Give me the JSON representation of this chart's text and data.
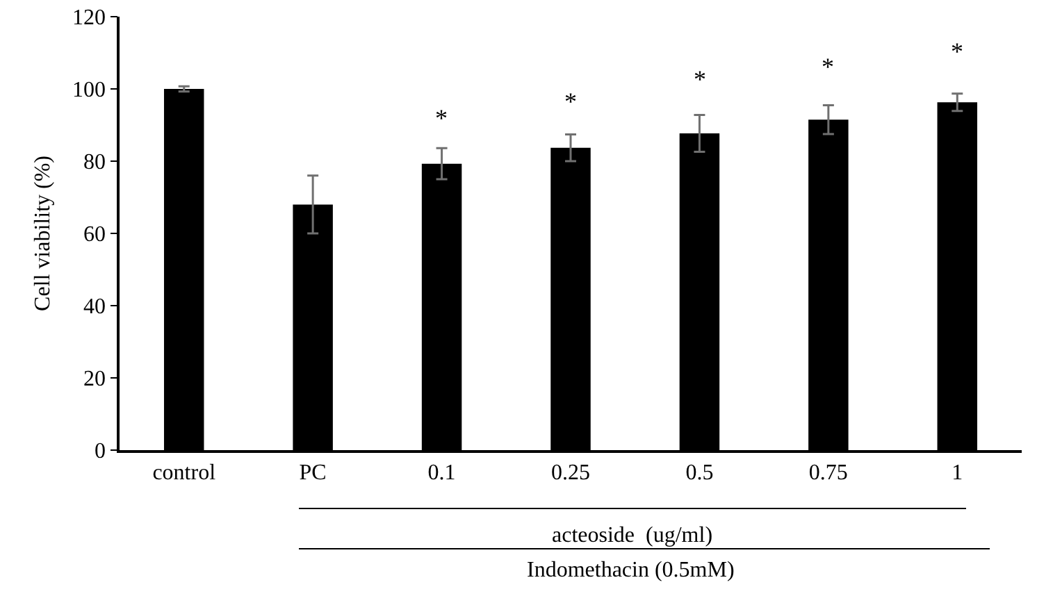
{
  "chart_data": {
    "type": "bar",
    "ylabel": "Cell viability (%)",
    "categories": [
      "control",
      "PC",
      "0.1",
      "0.25",
      "0.5",
      "0.75",
      "1"
    ],
    "values": [
      100,
      68,
      79.3,
      83.7,
      87.7,
      91.5,
      96.3
    ],
    "errors": [
      0.7,
      8,
      4.3,
      3.7,
      5.1,
      4,
      2.4
    ],
    "color": "#000000",
    "ylim": [
      0,
      120
    ],
    "yticks": [
      0,
      20,
      40,
      60,
      80,
      100,
      120
    ],
    "grid": false,
    "annotations": [
      "*",
      "*",
      "*",
      "*",
      "*",
      "acteoside  (ug/ml)",
      "Indomethacin (0.5mM)"
    ]
  }
}
